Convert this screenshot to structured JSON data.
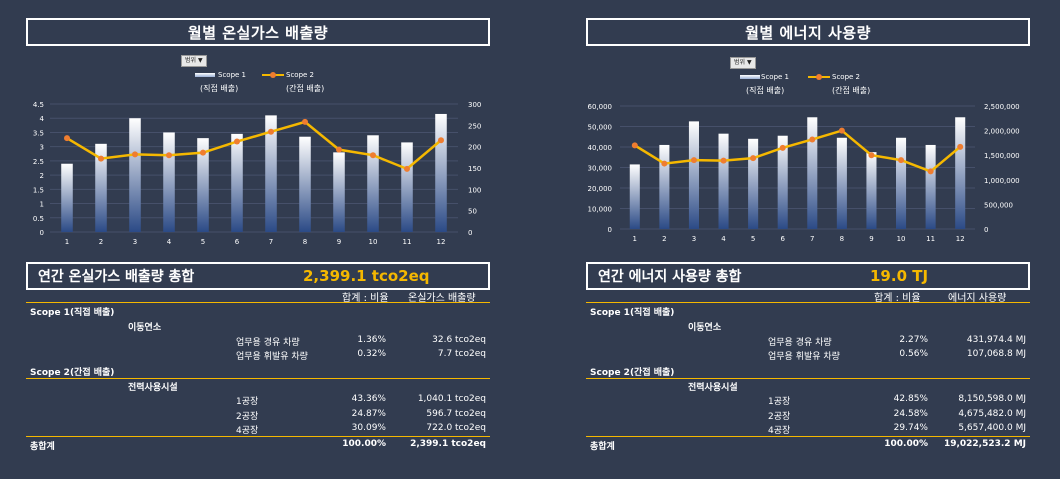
{
  "left": {
    "title": "월별 온실가스 배출량",
    "filter_label": "범위",
    "legend": {
      "scope1": "Scope 1",
      "scope1_sub": "(직접 배출)",
      "scope2": "Scope 2",
      "scope2_sub": "(간접 배출)"
    },
    "summary_label": "연간 온실가스 배출량 총합",
    "summary_value": "2,399.1 tco2eq",
    "col_ratio": "합계 : 비율",
    "col_value": "온실가스 배출량",
    "scope1_label": "Scope 1(직접 배출)",
    "group1": "이동연소",
    "rows1": [
      {
        "name": "업무용 경유 차량",
        "ratio": "1.36%",
        "value": "32.6 tco2eq"
      },
      {
        "name": "업무용 휘발유 차량",
        "ratio": "0.32%",
        "value": "7.7 tco2eq"
      }
    ],
    "scope2_label": "Scope 2(간접 배출)",
    "group2": "전력사용시설",
    "rows2": [
      {
        "name": "1공장",
        "ratio": "43.36%",
        "value": "1,040.1 tco2eq"
      },
      {
        "name": "2공장",
        "ratio": "24.87%",
        "value": "596.7 tco2eq"
      },
      {
        "name": "4공장",
        "ratio": "30.09%",
        "value": "722.0 tco2eq"
      }
    ],
    "total_label": "총합계",
    "total_ratio": "100.00%",
    "total_value": "2,399.1 tco2eq"
  },
  "right": {
    "title": "월별 에너지 사용량",
    "filter_label": "범위",
    "legend": {
      "scope1": "Scope 1",
      "scope1_sub": "(직접 배출)",
      "scope2": "Scope 2",
      "scope2_sub": "(간접 배출)"
    },
    "summary_label": "연간 에너지 사용량 총합",
    "summary_value": "19.0 TJ",
    "col_ratio": "합계 : 비율",
    "col_value": "에너지 사용량",
    "scope1_label": "Scope 1(직접 배출)",
    "group1": "이동연소",
    "rows1": [
      {
        "name": "업무용 경유 차량",
        "ratio": "2.27%",
        "value": "431,974.4 MJ"
      },
      {
        "name": "업무용 휘발유 차량",
        "ratio": "0.56%",
        "value": "107,068.8 MJ"
      }
    ],
    "scope2_label": "Scope 2(간접 배출)",
    "group2": "전력사용시설",
    "rows2": [
      {
        "name": "1공장",
        "ratio": "42.85%",
        "value": "8,150,598.0 MJ"
      },
      {
        "name": "2공장",
        "ratio": "24.58%",
        "value": "4,675,482.0 MJ"
      },
      {
        "name": "4공장",
        "ratio": "29.74%",
        "value": "5,657,400.0 MJ"
      }
    ],
    "total_label": "총합계",
    "total_ratio": "100.00%",
    "total_value": "19,022,523.2 MJ"
  },
  "colors": {
    "bar_top": "#ffffff",
    "bar_bottom": "#2b4a86",
    "line": "#f5b800",
    "marker": "#ef7d30",
    "accent": "#f5b800"
  },
  "chart_data": [
    {
      "type": "bar",
      "categories": [
        "1",
        "2",
        "3",
        "4",
        "5",
        "6",
        "7",
        "8",
        "9",
        "10",
        "11",
        "12"
      ],
      "series": [
        {
          "name": "Scope 1",
          "type": "bar",
          "axis": "left",
          "values": [
            2.4,
            3.1,
            4.0,
            3.5,
            3.3,
            3.45,
            4.1,
            3.35,
            2.8,
            3.4,
            3.15,
            4.15
          ]
        },
        {
          "name": "Scope 2",
          "type": "line",
          "axis": "right",
          "values": [
            220,
            172,
            182,
            180,
            186,
            212,
            235,
            258,
            193,
            180,
            148,
            215
          ]
        }
      ],
      "y_left": {
        "min": 0,
        "max": 4.5,
        "ticks": [
          "0",
          "0.5",
          "1",
          "1.5",
          "2",
          "2.5",
          "3",
          "3.5",
          "4",
          "4.5"
        ]
      },
      "y_right": {
        "min": 0,
        "max": 300,
        "ticks": [
          "0",
          "50",
          "100",
          "150",
          "200",
          "250",
          "300"
        ]
      },
      "legend": "top"
    },
    {
      "type": "bar",
      "categories": [
        "1",
        "2",
        "3",
        "4",
        "5",
        "6",
        "7",
        "8",
        "9",
        "10",
        "11",
        "12"
      ],
      "series": [
        {
          "name": "Scope 1",
          "type": "bar",
          "axis": "left",
          "values": [
            31500,
            41000,
            52500,
            46500,
            44000,
            45500,
            54500,
            44500,
            37500,
            44500,
            41000,
            54500
          ]
        },
        {
          "name": "Scope 2",
          "type": "line",
          "axis": "right",
          "values": [
            1700000,
            1330000,
            1400000,
            1390000,
            1440000,
            1650000,
            1820000,
            2000000,
            1500000,
            1400000,
            1170000,
            1670000
          ]
        }
      ],
      "y_left": {
        "min": 0,
        "max": 60000,
        "ticks": [
          "0",
          "10,000",
          "20,000",
          "30,000",
          "40,000",
          "50,000",
          "60,000"
        ]
      },
      "y_right": {
        "min": 0,
        "max": 2500000,
        "ticks": [
          "0",
          "500,000",
          "1,000,000",
          "1,500,000",
          "2,000,000",
          "2,500,000"
        ]
      },
      "legend": "top"
    }
  ]
}
